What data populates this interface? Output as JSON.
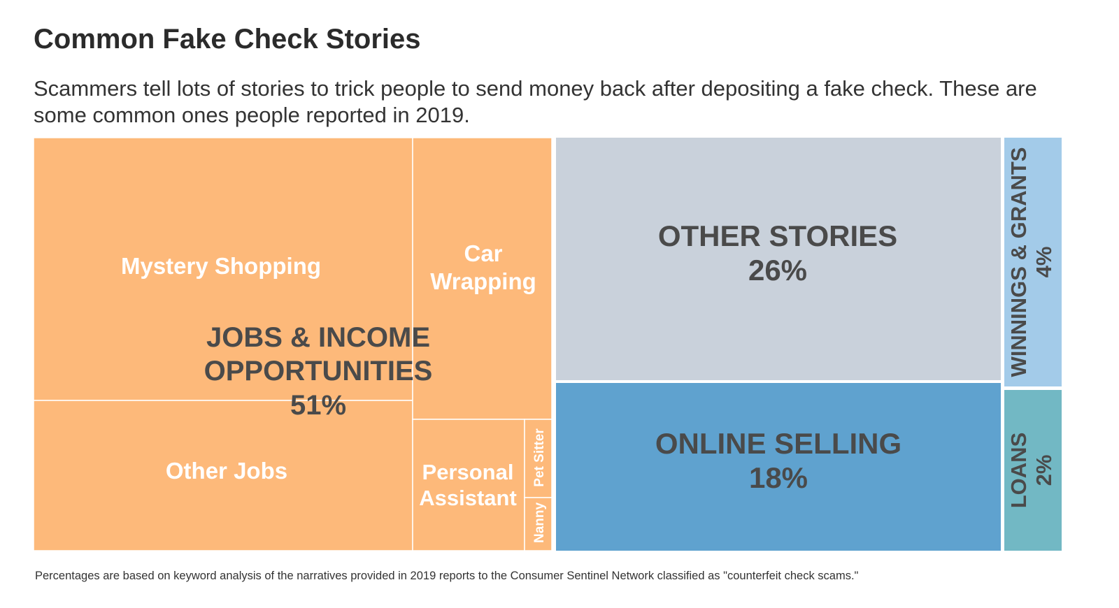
{
  "title": "Common Fake Check Stories",
  "subtitle": "Scammers tell lots of stories to trick people to send money back after depositing a fake check. These are some common ones people reported in 2019.",
  "footnote": "Percentages are based on keyword analysis of the narratives provided in 2019 reports to the Consumer Sentinel Network classified as \"counterfeit check scams.\"",
  "colors": {
    "jobs": "#fdb97a",
    "other_stories": "#c9d1db",
    "online_selling": "#5fa2cf",
    "winnings": "#a3cbe9",
    "loans": "#72b8c4"
  },
  "chart_data": {
    "type": "treemap",
    "title": "Common Fake Check Stories",
    "unit": "percent",
    "groups": [
      {
        "id": "jobs",
        "label_lines": [
          "JOBS & INCOME",
          "OPPORTUNITIES"
        ],
        "value_label": "51%",
        "value": 51,
        "children": [
          {
            "id": "mystery",
            "label_lines": [
              "Mystery Shopping"
            ]
          },
          {
            "id": "otherjobs",
            "label_lines": [
              "Other Jobs"
            ]
          },
          {
            "id": "car",
            "label_lines": [
              "Car",
              "Wrapping"
            ]
          },
          {
            "id": "pa",
            "label_lines": [
              "Personal",
              "Assistant"
            ]
          },
          {
            "id": "pet",
            "label_lines": [
              "Pet Sitter"
            ]
          },
          {
            "id": "nanny",
            "label_lines": [
              "Nanny"
            ]
          }
        ]
      },
      {
        "id": "other_stories",
        "label_lines": [
          "OTHER STORIES"
        ],
        "value_label": "26%",
        "value": 26
      },
      {
        "id": "online_selling",
        "label_lines": [
          "ONLINE SELLING"
        ],
        "value_label": "18%",
        "value": 18
      },
      {
        "id": "winnings",
        "label_lines": [
          "WINNINGS & GRANTS"
        ],
        "value_label": "4%",
        "value": 4
      },
      {
        "id": "loans",
        "label_lines": [
          "LOANS"
        ],
        "value_label": "2%",
        "value": 2
      }
    ]
  }
}
